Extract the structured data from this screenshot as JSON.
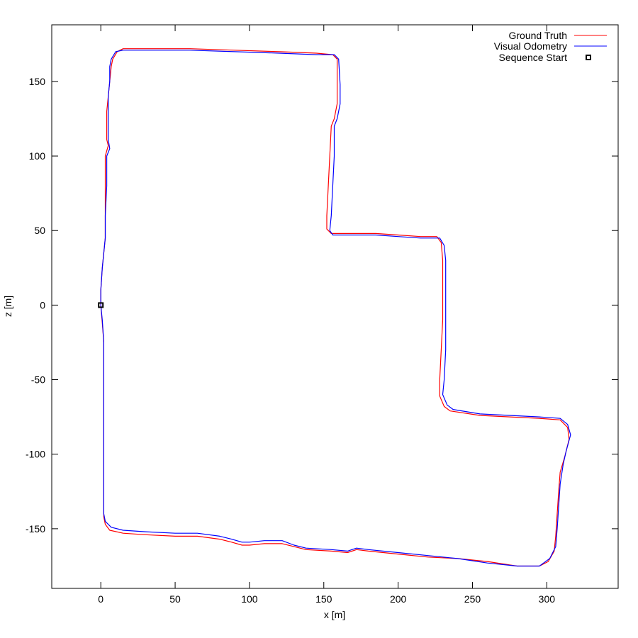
{
  "chart_data": {
    "type": "line",
    "title": "",
    "xlabel": "x [m]",
    "ylabel": "z [m]",
    "xlim": [
      -33,
      348
    ],
    "ylim": [
      -190,
      188
    ],
    "xticks": [
      0,
      50,
      100,
      150,
      200,
      250,
      300
    ],
    "yticks": [
      -150,
      -100,
      -50,
      0,
      50,
      100,
      150
    ],
    "grid": false,
    "legend_position": "top-right",
    "series": [
      {
        "name": "Ground Truth",
        "color": "#ff0000",
        "points": [
          [
            0,
            0
          ],
          [
            1,
            -12
          ],
          [
            2,
            -25
          ],
          [
            2,
            -50
          ],
          [
            2,
            -80
          ],
          [
            2,
            -110
          ],
          [
            2,
            -142
          ],
          [
            3,
            -147
          ],
          [
            6,
            -151
          ],
          [
            15,
            -153
          ],
          [
            30,
            -154
          ],
          [
            50,
            -155
          ],
          [
            65,
            -155
          ],
          [
            80,
            -157
          ],
          [
            88,
            -159
          ],
          [
            95,
            -161
          ],
          [
            100,
            -161
          ],
          [
            110,
            -160
          ],
          [
            122,
            -160
          ],
          [
            130,
            -162
          ],
          [
            138,
            -164
          ],
          [
            155,
            -165
          ],
          [
            166,
            -166
          ],
          [
            172,
            -164
          ],
          [
            180,
            -165
          ],
          [
            200,
            -167
          ],
          [
            220,
            -169
          ],
          [
            240,
            -170
          ],
          [
            260,
            -172
          ],
          [
            280,
            -175
          ],
          [
            295,
            -175
          ],
          [
            301,
            -172
          ],
          [
            305,
            -165
          ],
          [
            306,
            -155
          ],
          [
            307,
            -140
          ],
          [
            308,
            -125
          ],
          [
            309,
            -112
          ],
          [
            312,
            -102
          ],
          [
            315,
            -90
          ],
          [
            314,
            -82
          ],
          [
            309,
            -77
          ],
          [
            295,
            -76
          ],
          [
            275,
            -75
          ],
          [
            255,
            -74
          ],
          [
            235,
            -71
          ],
          [
            231,
            -68
          ],
          [
            228,
            -61
          ],
          [
            228,
            -50
          ],
          [
            229,
            -30
          ],
          [
            230,
            -10
          ],
          [
            230,
            10
          ],
          [
            230,
            30
          ],
          [
            229,
            42
          ],
          [
            226,
            46
          ],
          [
            215,
            46
          ],
          [
            200,
            47
          ],
          [
            185,
            48
          ],
          [
            165,
            48
          ],
          [
            155,
            48
          ],
          [
            152,
            51
          ],
          [
            152,
            60
          ],
          [
            153,
            80
          ],
          [
            154,
            100
          ],
          [
            155,
            120
          ],
          [
            157,
            125
          ],
          [
            159,
            135
          ],
          [
            159,
            148
          ],
          [
            159,
            165
          ],
          [
            156,
            168
          ],
          [
            145,
            169
          ],
          [
            120,
            170
          ],
          [
            90,
            171
          ],
          [
            60,
            172
          ],
          [
            30,
            172
          ],
          [
            15,
            172
          ],
          [
            11,
            170
          ],
          [
            8,
            165
          ],
          [
            7,
            160
          ],
          [
            6,
            150
          ],
          [
            5,
            140
          ],
          [
            4,
            130
          ],
          [
            4,
            120
          ],
          [
            4,
            111
          ],
          [
            5,
            107
          ],
          [
            3,
            100
          ],
          [
            3,
            80
          ],
          [
            3,
            60
          ],
          [
            3,
            45
          ],
          [
            2,
            35
          ],
          [
            1,
            25
          ],
          [
            0,
            10
          ],
          [
            0,
            0
          ]
        ]
      },
      {
        "name": "Visual Odometry",
        "color": "#0000ff",
        "points": [
          [
            0,
            0
          ],
          [
            1,
            -10
          ],
          [
            2,
            -25
          ],
          [
            2,
            -50
          ],
          [
            2,
            -80
          ],
          [
            2,
            -110
          ],
          [
            2,
            -140
          ],
          [
            3,
            -145
          ],
          [
            7,
            -149
          ],
          [
            15,
            -151
          ],
          [
            30,
            -152
          ],
          [
            50,
            -153
          ],
          [
            65,
            -153
          ],
          [
            80,
            -155
          ],
          [
            88,
            -157
          ],
          [
            95,
            -159
          ],
          [
            100,
            -159
          ],
          [
            110,
            -158
          ],
          [
            122,
            -158
          ],
          [
            130,
            -161
          ],
          [
            138,
            -163
          ],
          [
            155,
            -164
          ],
          [
            166,
            -165
          ],
          [
            172,
            -163
          ],
          [
            180,
            -164
          ],
          [
            200,
            -166
          ],
          [
            220,
            -168
          ],
          [
            240,
            -170
          ],
          [
            260,
            -173
          ],
          [
            280,
            -175
          ],
          [
            295,
            -175
          ],
          [
            302,
            -170
          ],
          [
            306,
            -162
          ],
          [
            307,
            -150
          ],
          [
            308,
            -135
          ],
          [
            309,
            -120
          ],
          [
            311,
            -107
          ],
          [
            313,
            -98
          ],
          [
            316,
            -87
          ],
          [
            314,
            -80
          ],
          [
            309,
            -76
          ],
          [
            295,
            -75
          ],
          [
            275,
            -74
          ],
          [
            255,
            -73
          ],
          [
            237,
            -70
          ],
          [
            233,
            -67
          ],
          [
            230,
            -60
          ],
          [
            231,
            -50
          ],
          [
            232,
            -30
          ],
          [
            232,
            -10
          ],
          [
            232,
            10
          ],
          [
            232,
            30
          ],
          [
            231,
            40
          ],
          [
            228,
            45
          ],
          [
            215,
            45
          ],
          [
            200,
            46
          ],
          [
            185,
            47
          ],
          [
            165,
            47
          ],
          [
            156,
            47
          ],
          [
            154,
            50
          ],
          [
            155,
            60
          ],
          [
            156,
            80
          ],
          [
            157,
            100
          ],
          [
            157,
            120
          ],
          [
            159,
            125
          ],
          [
            161,
            135
          ],
          [
            161,
            148
          ],
          [
            160,
            165
          ],
          [
            157,
            168
          ],
          [
            145,
            168
          ],
          [
            120,
            169
          ],
          [
            90,
            170
          ],
          [
            60,
            171
          ],
          [
            30,
            171
          ],
          [
            15,
            171
          ],
          [
            10,
            170
          ],
          [
            7,
            165
          ],
          [
            6,
            160
          ],
          [
            6,
            150
          ],
          [
            5,
            140
          ],
          [
            5,
            130
          ],
          [
            5,
            120
          ],
          [
            5,
            111
          ],
          [
            6,
            105
          ],
          [
            4,
            100
          ],
          [
            4,
            80
          ],
          [
            3,
            60
          ],
          [
            3,
            45
          ],
          [
            2,
            35
          ],
          [
            1,
            25
          ],
          [
            0,
            10
          ],
          [
            0,
            0
          ]
        ]
      }
    ],
    "markers": [
      {
        "name": "Sequence Start",
        "x": 0,
        "y": 0,
        "shape": "square",
        "color": "#000000"
      }
    ]
  }
}
